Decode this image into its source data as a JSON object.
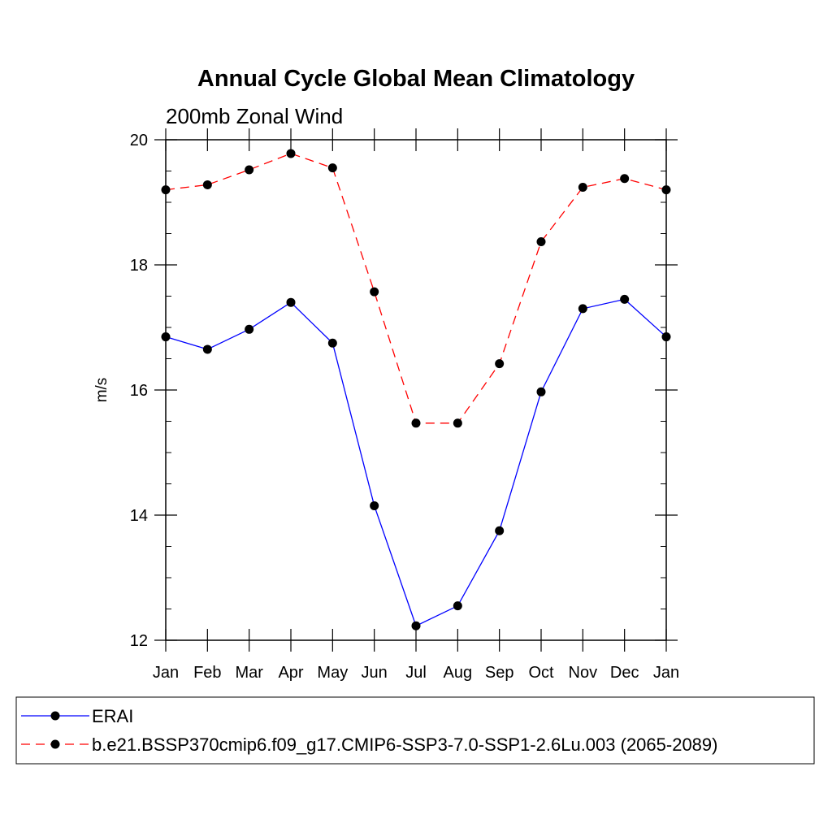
{
  "chart_data": {
    "type": "line",
    "title": "Annual Cycle Global Mean Climatology",
    "subtitle": "200mb Zonal Wind",
    "xlabel": "",
    "ylabel": "m/s",
    "categories": [
      "Jan",
      "Feb",
      "Mar",
      "Apr",
      "May",
      "Jun",
      "Jul",
      "Aug",
      "Sep",
      "Oct",
      "Nov",
      "Dec",
      "Jan"
    ],
    "ylim": [
      12,
      20
    ],
    "yticks": [
      12,
      14,
      16,
      18,
      20
    ],
    "ytick_labels": [
      "12",
      "14",
      "16",
      "18",
      "20"
    ],
    "yminor_step": 0.5,
    "grid": false,
    "legend_position": "bottom",
    "series": [
      {
        "name": "ERAI",
        "color": "#0000ff",
        "line_style": "solid",
        "marker": "circle",
        "marker_color": "#000000",
        "values": [
          16.85,
          16.65,
          16.97,
          17.4,
          16.75,
          14.15,
          12.23,
          12.55,
          13.75,
          15.97,
          17.3,
          17.45,
          16.85
        ]
      },
      {
        "name": "b.e21.BSSP370cmip6.f09_g17.CMIP6-SSP3-7.0-SSP1-2.6Lu.003 (2065-2089)",
        "color": "#ff0000",
        "line_style": "dashed",
        "marker": "circle",
        "marker_color": "#000000",
        "values": [
          19.2,
          19.28,
          19.52,
          19.78,
          19.55,
          17.57,
          15.47,
          15.47,
          16.42,
          18.37,
          19.24,
          19.38,
          19.2
        ]
      }
    ]
  }
}
